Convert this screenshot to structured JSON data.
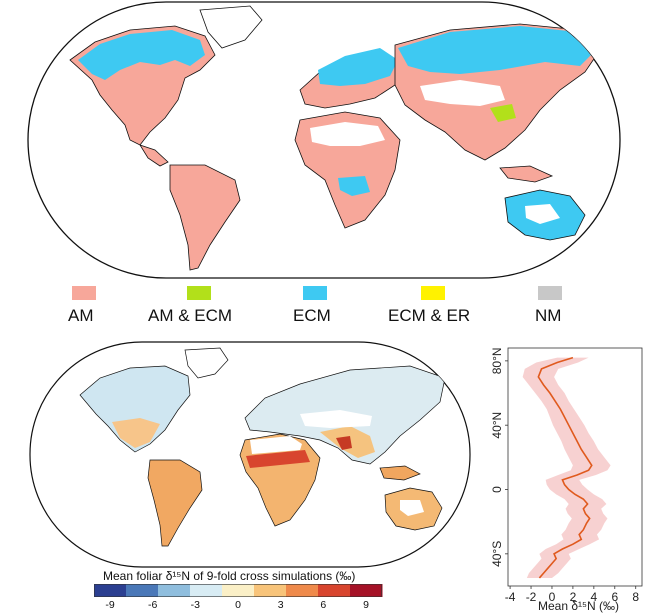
{
  "top_map": {
    "legend": [
      {
        "label": "AM",
        "color": "#f7a79a"
      },
      {
        "label": "AM & ECM",
        "color": "#b2e01a"
      },
      {
        "label": "ECM",
        "color": "#3ec9f2"
      },
      {
        "label": "ECM & ER",
        "color": "#fff200"
      },
      {
        "label": "NM",
        "color": "#c8c8c8"
      }
    ]
  },
  "bottom_map": {
    "colorbar": {
      "title": "Mean foliar δ¹⁵N of 9-fold cross simulations (‰)",
      "ticks": [
        "-9",
        "-6",
        "-3",
        "0",
        "3",
        "6",
        "9"
      ],
      "colors": [
        "#2b3f91",
        "#4a78b8",
        "#8fbede",
        "#d8ecf4",
        "#fbf0c7",
        "#f8c47a",
        "#ef8a4b",
        "#d8452e",
        "#a51227"
      ]
    }
  },
  "chart_data": {
    "type": "line",
    "title": "",
    "xlabel": "Mean δ¹⁵N (‰)",
    "ylabel": "",
    "xlim": [
      -4.2,
      8.6
    ],
    "ylim": [
      -60,
      88
    ],
    "x_ticks": [
      "-4",
      "-2",
      "0",
      "2",
      "4",
      "6",
      "8"
    ],
    "y_ticks": [
      {
        "value": 80,
        "label": "80°N"
      },
      {
        "value": 40,
        "label": "40°N"
      },
      {
        "value": 0,
        "label": "0"
      },
      {
        "value": -40,
        "label": "40°S"
      }
    ],
    "line_color": "#e05a1e",
    "band_color": "#f6c9c9",
    "series": [
      {
        "values": [
          {
            "lat": 82,
            "mean": 2.0,
            "lo": 0.5,
            "hi": 3.5
          },
          {
            "lat": 79,
            "mean": 0.5,
            "lo": -1.5,
            "hi": 2.5
          },
          {
            "lat": 75,
            "mean": -1.0,
            "lo": -2.6,
            "hi": 0.6
          },
          {
            "lat": 70,
            "mean": -1.3,
            "lo": -2.8,
            "hi": 0.2
          },
          {
            "lat": 65,
            "mean": -0.8,
            "lo": -2.2,
            "hi": 0.6
          },
          {
            "lat": 60,
            "mean": -0.2,
            "lo": -1.6,
            "hi": 1.2
          },
          {
            "lat": 55,
            "mean": 0.3,
            "lo": -1.0,
            "hi": 1.6
          },
          {
            "lat": 50,
            "mean": 0.8,
            "lo": -0.5,
            "hi": 2.1
          },
          {
            "lat": 45,
            "mean": 1.2,
            "lo": -0.2,
            "hi": 2.6
          },
          {
            "lat": 40,
            "mean": 1.6,
            "lo": 0.1,
            "hi": 3.1
          },
          {
            "lat": 35,
            "mean": 2.0,
            "lo": 0.5,
            "hi": 3.5
          },
          {
            "lat": 30,
            "mean": 2.4,
            "lo": 0.9,
            "hi": 4.0
          },
          {
            "lat": 25,
            "mean": 2.8,
            "lo": 1.2,
            "hi": 4.4
          },
          {
            "lat": 20,
            "mean": 3.3,
            "lo": 1.6,
            "hi": 5.0
          },
          {
            "lat": 15,
            "mean": 3.8,
            "lo": 2.0,
            "hi": 5.6
          },
          {
            "lat": 12,
            "mean": 3.5,
            "lo": 1.8,
            "hi": 5.3
          },
          {
            "lat": 9,
            "mean": 2.4,
            "lo": 0.6,
            "hi": 4.2
          },
          {
            "lat": 6,
            "mean": 1.0,
            "lo": -0.6,
            "hi": 2.6
          },
          {
            "lat": 3,
            "mean": 1.2,
            "lo": -0.5,
            "hi": 2.9
          },
          {
            "lat": 0,
            "mean": 1.6,
            "lo": -0.2,
            "hi": 3.4
          },
          {
            "lat": -3,
            "mean": 2.2,
            "lo": 0.4,
            "hi": 4.0
          },
          {
            "lat": -6,
            "mean": 3.0,
            "lo": 1.2,
            "hi": 4.8
          },
          {
            "lat": -9,
            "mean": 3.4,
            "lo": 1.6,
            "hi": 5.2
          },
          {
            "lat": -12,
            "mean": 3.0,
            "lo": 1.3,
            "hi": 4.7
          },
          {
            "lat": -15,
            "mean": 3.2,
            "lo": 1.5,
            "hi": 4.9
          },
          {
            "lat": -18,
            "mean": 3.6,
            "lo": 1.9,
            "hi": 5.3
          },
          {
            "lat": -21,
            "mean": 3.3,
            "lo": 1.6,
            "hi": 5.0
          },
          {
            "lat": -25,
            "mean": 3.0,
            "lo": 1.3,
            "hi": 4.7
          },
          {
            "lat": -28,
            "mean": 2.6,
            "lo": 0.9,
            "hi": 4.3
          },
          {
            "lat": -31,
            "mean": 2.8,
            "lo": 1.1,
            "hi": 4.5
          },
          {
            "lat": -34,
            "mean": 2.0,
            "lo": 0.4,
            "hi": 3.6
          },
          {
            "lat": -37,
            "mean": 1.0,
            "lo": -0.6,
            "hi": 2.6
          },
          {
            "lat": -40,
            "mean": 0.2,
            "lo": -1.2,
            "hi": 1.6
          },
          {
            "lat": -43,
            "mean": 0.4,
            "lo": -1.0,
            "hi": 1.8
          },
          {
            "lat": -46,
            "mean": 0.0,
            "lo": -1.4,
            "hi": 1.4
          },
          {
            "lat": -49,
            "mean": -0.4,
            "lo": -1.8,
            "hi": 1.0
          },
          {
            "lat": -52,
            "mean": -0.8,
            "lo": -2.2,
            "hi": 0.6
          },
          {
            "lat": -55,
            "mean": -1.2,
            "lo": -2.4,
            "hi": 0.0
          }
        ]
      }
    ]
  }
}
